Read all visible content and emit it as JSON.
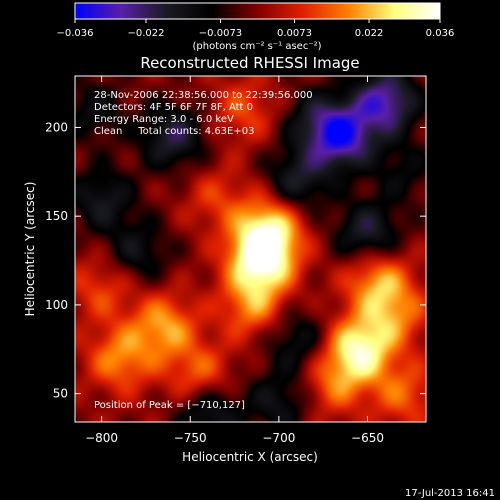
{
  "colorbar": {
    "ticks": [
      "−0.036",
      "−0.022",
      "−0.0073",
      "0.0073",
      "0.022",
      "0.036"
    ],
    "tick_values": [
      -0.036,
      -0.022,
      -0.0073,
      0.0073,
      0.022,
      0.036
    ],
    "units_label": "(photons cm⁻² s⁻¹ asec⁻²)",
    "stops": [
      "#0000ff",
      "#5a1fa8",
      "#1a1a22",
      "#000000",
      "#800000",
      "#e02000",
      "#ff8000",
      "#ffff80",
      "#ffffff"
    ]
  },
  "annotation": {
    "time_range": "28-Nov-2006 22:38:56.000 to 22:39:56.000",
    "detectors": "Detectors: 4F 5F 6F 7F 8F, Att 0",
    "energy_range": "Energy Range: 3.0 - 6.0 keV",
    "clean_counts": "Clean     Total counts: 4.63E+03",
    "peak": "Position of Peak = [−710,127]"
  },
  "footer": {
    "timestamp": "17-Jul-2013 16:41"
  },
  "chart_data": {
    "type": "heatmap",
    "title": "Reconstructed RHESSI Image",
    "xlabel": "Heliocentric X (arcsec)",
    "ylabel": "Heliocentric Y (arcsec)",
    "xlim": [
      -815,
      -617
    ],
    "ylim": [
      34,
      229
    ],
    "xticks": [
      -800,
      -750,
      -700,
      -650
    ],
    "yticks": [
      50,
      100,
      150,
      200
    ],
    "xtick_labels": [
      "−800",
      "−750",
      "−700",
      "−650"
    ],
    "ytick_labels": [
      "50",
      "100",
      "150",
      "200"
    ],
    "grid": false,
    "peak_position": [
      -710,
      127
    ],
    "sources": [
      {
        "x": -710,
        "y": 127,
        "value": 0.036
      },
      {
        "x": -705,
        "y": 145,
        "value": 0.022
      },
      {
        "x": -715,
        "y": 100,
        "value": 0.018
      },
      {
        "x": -655,
        "y": 75,
        "value": 0.03
      },
      {
        "x": -645,
        "y": 115,
        "value": 0.02
      },
      {
        "x": -635,
        "y": 95,
        "value": 0.016
      },
      {
        "x": -765,
        "y": 88,
        "value": 0.02
      },
      {
        "x": -790,
        "y": 70,
        "value": 0.018
      },
      {
        "x": -745,
        "y": 60,
        "value": 0.016
      },
      {
        "x": -800,
        "y": 110,
        "value": 0.012
      },
      {
        "x": -720,
        "y": 210,
        "value": 0.012
      },
      {
        "x": -670,
        "y": 55,
        "value": 0.014
      },
      {
        "x": -735,
        "y": 160,
        "value": 0.01
      },
      {
        "x": -630,
        "y": 50,
        "value": 0.014
      },
      {
        "x": -680,
        "y": 205,
        "value": -0.012
      },
      {
        "x": -665,
        "y": 195,
        "value": -0.03
      },
      {
        "x": -640,
        "y": 215,
        "value": -0.028
      },
      {
        "x": -650,
        "y": 140,
        "value": -0.02
      },
      {
        "x": -690,
        "y": 170,
        "value": -0.018
      },
      {
        "x": -760,
        "y": 195,
        "value": -0.02
      },
      {
        "x": -800,
        "y": 160,
        "value": -0.016
      },
      {
        "x": -780,
        "y": 130,
        "value": -0.014
      },
      {
        "x": -740,
        "y": 40,
        "value": -0.018
      },
      {
        "x": -690,
        "y": 80,
        "value": -0.014
      },
      {
        "x": -700,
        "y": 45,
        "value": -0.014
      },
      {
        "x": -805,
        "y": 210,
        "value": -0.012
      },
      {
        "x": -630,
        "y": 175,
        "value": -0.01
      }
    ]
  }
}
